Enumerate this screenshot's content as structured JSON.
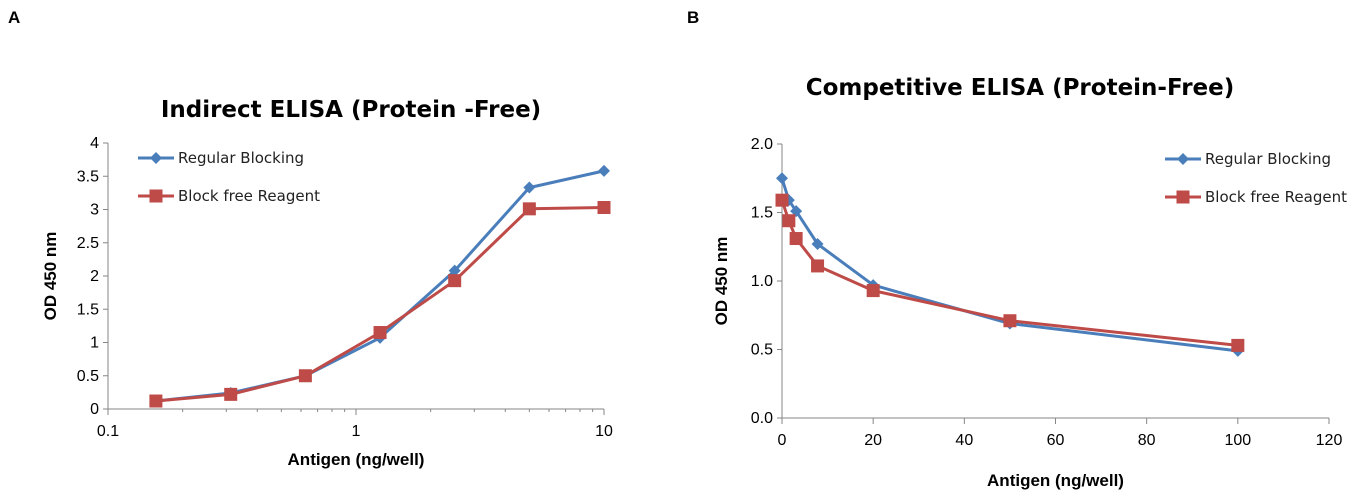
{
  "panels": {
    "a_label": "A",
    "b_label": "B"
  },
  "colors": {
    "regular": "#4a7ebb",
    "blockfree": "#be4b48"
  },
  "chart_data": [
    {
      "type": "line",
      "title": "Indirect ELISA (Protein -Free)",
      "xlabel": "Antigen (ng/well)",
      "ylabel": "OD 450 nm",
      "xscale": "log",
      "xlim": [
        0.1,
        10
      ],
      "ylim": [
        0,
        4
      ],
      "xticks": [
        0.1,
        1,
        10
      ],
      "xtick_labels": [
        "0.1",
        "1",
        "10"
      ],
      "yticks": [
        0,
        0.5,
        1,
        1.5,
        2,
        2.5,
        3,
        3.5,
        4
      ],
      "ytick_labels": [
        "0",
        "0.5",
        "1",
        "1.5",
        "2",
        "2.5",
        "3",
        "3.5",
        "4"
      ],
      "grid": false,
      "legend_position": "top-left",
      "series": [
        {
          "name": "Regular Blocking",
          "marker": "diamond",
          "x": [
            0.156,
            0.3125,
            0.625,
            1.25,
            2.5,
            5,
            10
          ],
          "y": [
            0.12,
            0.24,
            0.5,
            1.07,
            2.08,
            3.33,
            3.58
          ]
        },
        {
          "name": "Block free Reagent",
          "marker": "square",
          "x": [
            0.156,
            0.3125,
            0.625,
            1.25,
            2.5,
            5,
            10
          ],
          "y": [
            0.12,
            0.22,
            0.5,
            1.15,
            1.93,
            3.01,
            3.03
          ]
        }
      ]
    },
    {
      "type": "line",
      "title": "Competitive ELISA (Protein-Free)",
      "xlabel": "Antigen (ng/well)",
      "ylabel": "OD 450 nm",
      "xscale": "linear",
      "xlim": [
        0,
        120
      ],
      "ylim": [
        0,
        2
      ],
      "xticks": [
        0,
        20,
        40,
        60,
        80,
        100,
        120
      ],
      "xtick_labels": [
        "0",
        "20",
        "40",
        "60",
        "80",
        "100",
        "120"
      ],
      "yticks": [
        0,
        0.5,
        1,
        1.5,
        2
      ],
      "ytick_labels": [
        "0.0",
        "0.5",
        "1.0",
        "1.5",
        "2.0"
      ],
      "grid": false,
      "legend_position": "top-right",
      "series": [
        {
          "name": "Regular Blocking",
          "marker": "diamond",
          "x": [
            0,
            1.5,
            3.1,
            7.8,
            20,
            50,
            100
          ],
          "y": [
            1.75,
            1.59,
            1.51,
            1.27,
            0.97,
            0.69,
            0.49
          ]
        },
        {
          "name": "Block free Reagent",
          "marker": "square",
          "x": [
            0,
            1.5,
            3.1,
            7.8,
            20,
            50,
            100
          ],
          "y": [
            1.59,
            1.44,
            1.31,
            1.11,
            0.93,
            0.71,
            0.53
          ]
        }
      ]
    }
  ]
}
